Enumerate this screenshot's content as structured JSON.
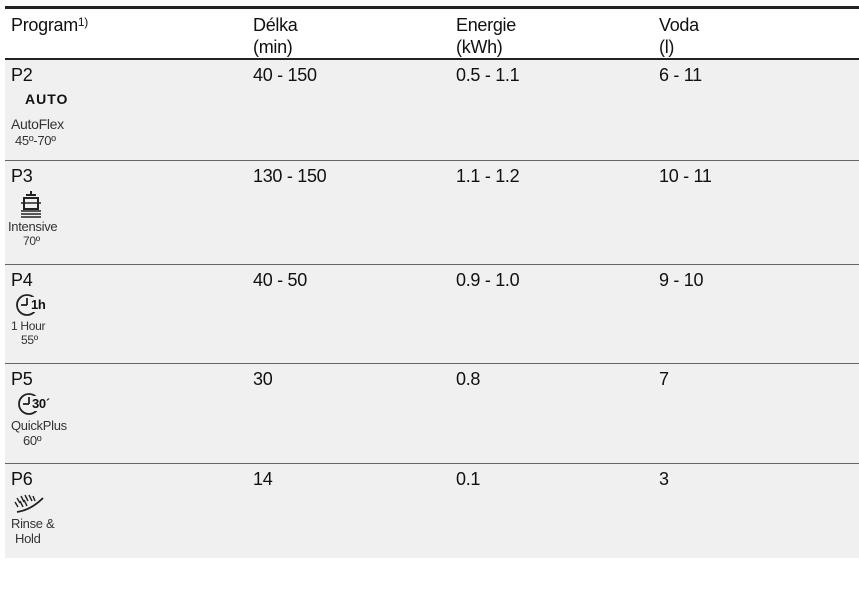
{
  "header": {
    "program": "Program",
    "program_sup": "1)",
    "duration_line1": "Délka",
    "duration_line2": "(min)",
    "energy_line1": "Energie",
    "energy_line2": "(kWh)",
    "water_line1": "Voda",
    "water_line2": "(l)"
  },
  "rows": [
    {
      "code": "P2",
      "icon_text": "AUTO",
      "name": "AutoFlex",
      "temp": "45º-70º",
      "duration": "40 - 150",
      "energy": "0.5 - 1.1",
      "water": "6 - 11",
      "icon": "auto-text-icon"
    },
    {
      "code": "P3",
      "name": "Intensive",
      "temp": "70º",
      "duration": "130 - 150",
      "energy": "1.1 - 1.2",
      "water": "10 - 11",
      "icon": "pot-icon"
    },
    {
      "code": "P4",
      "icon_text": "1h",
      "name": "1 Hour",
      "temp": "55º",
      "duration": "40 - 50",
      "energy": "0.9 - 1.0",
      "water": "9 - 10",
      "icon": "clock-1h-icon"
    },
    {
      "code": "P5",
      "icon_text": "30´",
      "name": "QuickPlus",
      "temp": "60º",
      "duration": "30",
      "energy": "0.8",
      "water": "7",
      "icon": "clock-30-icon"
    },
    {
      "code": "P6",
      "name": "Rinse &",
      "name2": "Hold",
      "duration": "14",
      "energy": "0.1",
      "water": "3",
      "icon": "rinse-spray-icon"
    }
  ]
}
